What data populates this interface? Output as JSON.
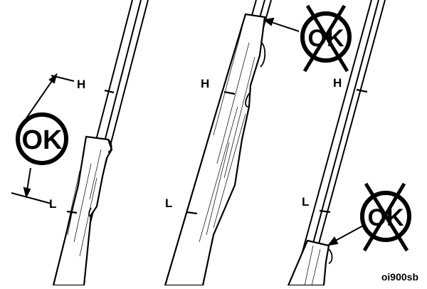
{
  "diagram": {
    "panels": [
      {
        "id": "correct-level",
        "h_label": "H",
        "l_label": "L",
        "status_label": "OK",
        "crossed_out": false
      },
      {
        "id": "overfilled",
        "h_label": "H",
        "l_label": "L",
        "status_label": "OK",
        "crossed_out": true
      },
      {
        "id": "underfilled",
        "h_label": "H",
        "l_label": "L",
        "status_label": "OK",
        "crossed_out": true
      }
    ],
    "figure_code": "oi900sb",
    "colors": {
      "ink": "#000000",
      "paper": "#ffffff"
    }
  }
}
